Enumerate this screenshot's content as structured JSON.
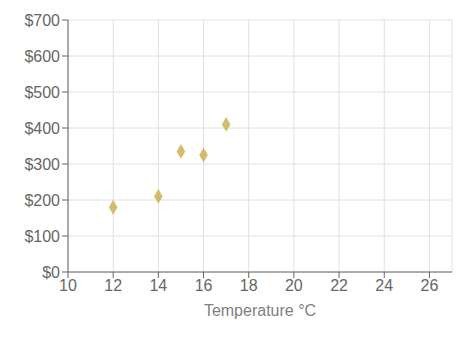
{
  "chart_data": {
    "type": "scatter",
    "x": [
      12,
      14,
      15,
      16,
      17
    ],
    "values": [
      180,
      210,
      335,
      325,
      410
    ],
    "color": "#D4BC6A",
    "marker": "diamond",
    "xlabel": "Temperature °C",
    "xlim": [
      10,
      27
    ],
    "xticks": [
      10,
      12,
      14,
      16,
      18,
      20,
      22,
      24,
      26
    ],
    "ylim": [
      0,
      700
    ],
    "yticks": [
      {
        "value": 0,
        "label": "$0"
      },
      {
        "value": 100,
        "label": "$100"
      },
      {
        "value": 200,
        "label": "$200"
      },
      {
        "value": 300,
        "label": "$300"
      },
      {
        "value": 400,
        "label": "$400"
      },
      {
        "value": 500,
        "label": "$500"
      },
      {
        "value": 600,
        "label": "$600"
      },
      {
        "value": 700,
        "label": "$700"
      }
    ],
    "grid": true
  }
}
